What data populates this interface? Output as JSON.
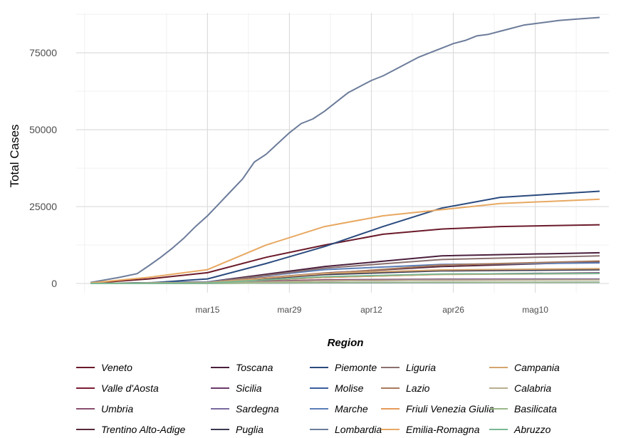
{
  "chart_data": {
    "type": "line",
    "title": "",
    "xlabel": "",
    "ylabel": "Total Cases",
    "x_start_date": "2020-02-24",
    "x_end_date": "2020-05-21",
    "xlim_days": [
      0,
      87
    ],
    "x_ticks": [
      {
        "day": 20,
        "label": "mar15"
      },
      {
        "day": 34,
        "label": "mar29"
      },
      {
        "day": 48,
        "label": "apr12"
      },
      {
        "day": 62,
        "label": "apr26"
      },
      {
        "day": 76,
        "label": "mag10"
      }
    ],
    "ylim": [
      -3000,
      88000
    ],
    "y_ticks": [
      0,
      25000,
      50000,
      75000
    ],
    "grid": true,
    "legend": {
      "title": "Region",
      "placement": "bottom",
      "columns": 5
    },
    "series": [
      {
        "name": "Veneto",
        "color": "#6b1a2a",
        "points": [
          [
            0,
            100
          ],
          [
            10,
            1500
          ],
          [
            20,
            3500
          ],
          [
            30,
            8500
          ],
          [
            40,
            12500
          ],
          [
            50,
            16000
          ],
          [
            60,
            17700
          ],
          [
            70,
            18500
          ],
          [
            87,
            19100
          ]
        ]
      },
      {
        "name": "Valle d'Aosta",
        "color": "#7a1e34",
        "points": [
          [
            0,
            0
          ],
          [
            20,
            200
          ],
          [
            40,
            900
          ],
          [
            60,
            1100
          ],
          [
            87,
            1200
          ]
        ]
      },
      {
        "name": "Umbria",
        "color": "#8a4f6e",
        "points": [
          [
            0,
            0
          ],
          [
            20,
            300
          ],
          [
            40,
            1200
          ],
          [
            60,
            1400
          ],
          [
            87,
            1430
          ]
        ]
      },
      {
        "name": "Trentino Alto-Adige",
        "color": "#5a2a3c",
        "points": [
          [
            0,
            0
          ],
          [
            20,
            400
          ],
          [
            40,
            3400
          ],
          [
            60,
            5500
          ],
          [
            87,
            7000
          ]
        ]
      },
      {
        "name": "Toscana",
        "color": "#4a1f3d",
        "points": [
          [
            0,
            0
          ],
          [
            20,
            500
          ],
          [
            40,
            5500
          ],
          [
            60,
            9000
          ],
          [
            87,
            10000
          ]
        ]
      },
      {
        "name": "Sicilia",
        "color": "#6a3a6a",
        "points": [
          [
            0,
            0
          ],
          [
            20,
            250
          ],
          [
            40,
            2000
          ],
          [
            60,
            3000
          ],
          [
            87,
            3450
          ]
        ]
      },
      {
        "name": "Sardegna",
        "color": "#7a6a9e",
        "points": [
          [
            0,
            0
          ],
          [
            20,
            150
          ],
          [
            40,
            900
          ],
          [
            60,
            1250
          ],
          [
            87,
            1340
          ]
        ]
      },
      {
        "name": "Puglia",
        "color": "#3a3a52",
        "points": [
          [
            0,
            0
          ],
          [
            20,
            250
          ],
          [
            40,
            2900
          ],
          [
            60,
            4100
          ],
          [
            87,
            4450
          ]
        ]
      },
      {
        "name": "Piemonte",
        "color": "#2a4a7e",
        "points": [
          [
            0,
            0
          ],
          [
            10,
            200
          ],
          [
            20,
            1500
          ],
          [
            30,
            6500
          ],
          [
            40,
            12000
          ],
          [
            50,
            18500
          ],
          [
            60,
            24500
          ],
          [
            70,
            28000
          ],
          [
            87,
            30000
          ]
        ]
      },
      {
        "name": "Molise",
        "color": "#3a5e9e",
        "points": [
          [
            0,
            0
          ],
          [
            20,
            50
          ],
          [
            40,
            250
          ],
          [
            60,
            330
          ],
          [
            87,
            430
          ]
        ]
      },
      {
        "name": "Marche",
        "color": "#5a7eb8",
        "points": [
          [
            0,
            0
          ],
          [
            20,
            500
          ],
          [
            40,
            4500
          ],
          [
            60,
            6200
          ],
          [
            87,
            6700
          ]
        ]
      },
      {
        "name": "Lombardia",
        "color": "#6c7c9a",
        "points": [
          [
            0,
            300
          ],
          [
            2,
            1000
          ],
          [
            5,
            2000
          ],
          [
            8,
            3200
          ],
          [
            10,
            5800
          ],
          [
            12,
            8500
          ],
          [
            14,
            11500
          ],
          [
            16,
            14800
          ],
          [
            18,
            18600
          ],
          [
            20,
            22000
          ],
          [
            22,
            26000
          ],
          [
            24,
            30000
          ],
          [
            26,
            34000
          ],
          [
            28,
            39500
          ],
          [
            30,
            42000
          ],
          [
            32,
            45500
          ],
          [
            34,
            49000
          ],
          [
            36,
            52000
          ],
          [
            38,
            53500
          ],
          [
            40,
            56000
          ],
          [
            42,
            59000
          ],
          [
            44,
            62000
          ],
          [
            46,
            64000
          ],
          [
            48,
            66000
          ],
          [
            50,
            67500
          ],
          [
            52,
            69500
          ],
          [
            54,
            71500
          ],
          [
            56,
            73500
          ],
          [
            58,
            75000
          ],
          [
            60,
            76500
          ],
          [
            62,
            78000
          ],
          [
            64,
            79000
          ],
          [
            66,
            80500
          ],
          [
            68,
            81000
          ],
          [
            70,
            82000
          ],
          [
            72,
            83000
          ],
          [
            74,
            84000
          ],
          [
            76,
            84500
          ],
          [
            78,
            85000
          ],
          [
            80,
            85500
          ],
          [
            82,
            85800
          ],
          [
            84,
            86100
          ],
          [
            87,
            86500
          ]
        ]
      },
      {
        "name": "Liguria",
        "color": "#8a7070",
        "points": [
          [
            0,
            0
          ],
          [
            20,
            300
          ],
          [
            40,
            5000
          ],
          [
            60,
            7800
          ],
          [
            87,
            9000
          ]
        ]
      },
      {
        "name": "Lazio",
        "color": "#a87a5e",
        "points": [
          [
            0,
            0
          ],
          [
            20,
            300
          ],
          [
            40,
            3200
          ],
          [
            60,
            6000
          ],
          [
            87,
            7300
          ]
        ]
      },
      {
        "name": "Friuli Venezia Giulia",
        "color": "#e69a5a",
        "points": [
          [
            0,
            0
          ],
          [
            20,
            300
          ],
          [
            40,
            2000
          ],
          [
            60,
            2950
          ],
          [
            87,
            3250
          ]
        ]
      },
      {
        "name": "Emilia-Romagna",
        "color": "#e8a862",
        "points": [
          [
            0,
            200
          ],
          [
            10,
            2000
          ],
          [
            20,
            4500
          ],
          [
            30,
            12500
          ],
          [
            40,
            18500
          ],
          [
            50,
            22000
          ],
          [
            60,
            24000
          ],
          [
            70,
            26000
          ],
          [
            87,
            27400
          ]
        ]
      },
      {
        "name": "Campania",
        "color": "#d4a46e",
        "points": [
          [
            0,
            0
          ],
          [
            20,
            300
          ],
          [
            40,
            3300
          ],
          [
            60,
            4400
          ],
          [
            87,
            4800
          ]
        ]
      },
      {
        "name": "Calabria",
        "color": "#b8ae8e",
        "points": [
          [
            0,
            0
          ],
          [
            20,
            100
          ],
          [
            40,
            900
          ],
          [
            60,
            1100
          ],
          [
            87,
            1160
          ]
        ]
      },
      {
        "name": "Basilicata",
        "color": "#9ab88a",
        "points": [
          [
            0,
            0
          ],
          [
            20,
            40
          ],
          [
            40,
            290
          ],
          [
            60,
            380
          ],
          [
            87,
            400
          ]
        ]
      },
      {
        "name": "Abruzzo",
        "color": "#7ab894",
        "points": [
          [
            0,
            0
          ],
          [
            20,
            150
          ],
          [
            40,
            2200
          ],
          [
            60,
            3100
          ],
          [
            87,
            3260
          ]
        ]
      }
    ]
  }
}
